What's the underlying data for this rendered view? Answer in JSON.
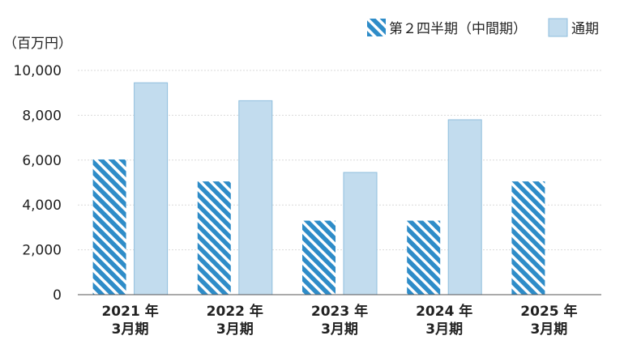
{
  "chart_data": {
    "type": "bar",
    "unit_label": "（百万円）",
    "categories": [
      [
        "2021 年",
        "3月期"
      ],
      [
        "2022 年",
        "3月期"
      ],
      [
        "2023 年",
        "3月期"
      ],
      [
        "2024 年",
        "3月期"
      ],
      [
        "2025 年",
        "3月期"
      ]
    ],
    "series": [
      {
        "name": "第２四半期（中間期）",
        "pattern": "hatched",
        "color": "#2E8CC8",
        "values": [
          6030,
          5050,
          3300,
          3300,
          5050
        ]
      },
      {
        "name": "通期",
        "pattern": "solid",
        "color": "#C2DCEE",
        "border": "#8FBEDD",
        "values": [
          9450,
          8650,
          5450,
          7800,
          null
        ]
      }
    ],
    "y_ticks": [
      "0",
      "2,000",
      "4,000",
      "6,000",
      "8,000",
      "10,000"
    ],
    "ylim": [
      0,
      10000
    ],
    "grid": true,
    "legend_position": "top-right"
  }
}
